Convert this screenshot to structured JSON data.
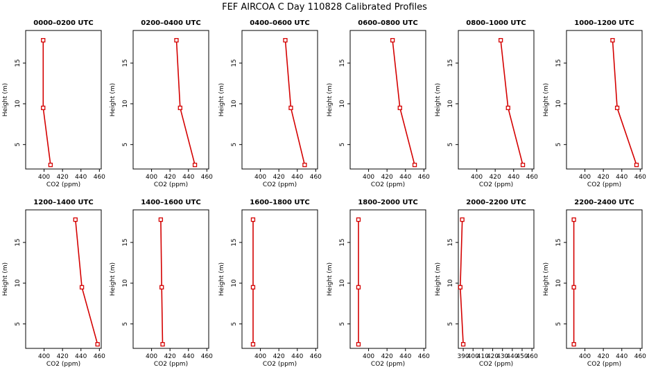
{
  "figure_title": "FEF AIRCOA C  Day 110828  Calibrated Profiles",
  "chart_data": [
    {
      "type": "line",
      "title": "0000–0200 UTC",
      "xlabel": "CO2 (ppm)",
      "ylabel": "Height (m)",
      "xlim": [
        380,
        462
      ],
      "ylim": [
        2,
        19
      ],
      "xticks": [
        400,
        420,
        440,
        460
      ],
      "yticks": [
        5,
        10,
        15
      ],
      "grid": false,
      "series": [
        {
          "x": [
            407,
            399,
            399
          ],
          "y": [
            2.5,
            9.5,
            17.8
          ]
        }
      ]
    },
    {
      "type": "line",
      "title": "0200–0400 UTC",
      "xlabel": "CO2 (ppm)",
      "ylabel": "Height (m)",
      "xlim": [
        380,
        462
      ],
      "ylim": [
        2,
        19
      ],
      "xticks": [
        400,
        420,
        440,
        460
      ],
      "yticks": [
        5,
        10,
        15
      ],
      "grid": false,
      "series": [
        {
          "x": [
            447,
            431,
            427
          ],
          "y": [
            2.5,
            9.5,
            17.8
          ]
        }
      ]
    },
    {
      "type": "line",
      "title": "0400–0600 UTC",
      "xlabel": "CO2 (ppm)",
      "ylabel": "Height (m)",
      "xlim": [
        380,
        462
      ],
      "ylim": [
        2,
        19
      ],
      "xticks": [
        400,
        420,
        440,
        460
      ],
      "yticks": [
        5,
        10,
        15
      ],
      "grid": false,
      "series": [
        {
          "x": [
            448,
            433,
            427
          ],
          "y": [
            2.5,
            9.5,
            17.8
          ]
        }
      ]
    },
    {
      "type": "line",
      "title": "0600–0800 UTC",
      "xlabel": "CO2 (ppm)",
      "ylabel": "Height (m)",
      "xlim": [
        380,
        462
      ],
      "ylim": [
        2,
        19
      ],
      "xticks": [
        400,
        420,
        440,
        460
      ],
      "yticks": [
        5,
        10,
        15
      ],
      "grid": false,
      "series": [
        {
          "x": [
            450,
            434,
            426
          ],
          "y": [
            2.5,
            9.5,
            17.8
          ]
        }
      ]
    },
    {
      "type": "line",
      "title": "0800–1000 UTC",
      "xlabel": "CO2 (ppm)",
      "ylabel": "Height (m)",
      "xlim": [
        380,
        462
      ],
      "ylim": [
        2,
        19
      ],
      "xticks": [
        400,
        420,
        440,
        460
      ],
      "yticks": [
        5,
        10,
        15
      ],
      "grid": false,
      "series": [
        {
          "x": [
            450,
            434,
            426
          ],
          "y": [
            2.5,
            9.5,
            17.8
          ]
        }
      ]
    },
    {
      "type": "line",
      "title": "1000–1200 UTC",
      "xlabel": "CO2 (ppm)",
      "ylabel": "Height (m)",
      "xlim": [
        380,
        462
      ],
      "ylim": [
        2,
        19
      ],
      "xticks": [
        400,
        420,
        440,
        460
      ],
      "yticks": [
        5,
        10,
        15
      ],
      "grid": false,
      "series": [
        {
          "x": [
            456,
            435,
            430
          ],
          "y": [
            2.5,
            9.5,
            17.8
          ]
        }
      ]
    },
    {
      "type": "line",
      "title": "1200–1400 UTC",
      "xlabel": "CO2 (ppm)",
      "ylabel": "Height (m)",
      "xlim": [
        380,
        462
      ],
      "ylim": [
        2,
        19
      ],
      "xticks": [
        400,
        420,
        440,
        460
      ],
      "yticks": [
        5,
        10,
        15
      ],
      "grid": false,
      "series": [
        {
          "x": [
            458,
            441,
            434
          ],
          "y": [
            2.5,
            9.5,
            17.8
          ]
        }
      ]
    },
    {
      "type": "line",
      "title": "1400–1600 UTC",
      "xlabel": "CO2 (ppm)",
      "ylabel": "Height (m)",
      "xlim": [
        380,
        462
      ],
      "ylim": [
        2,
        19
      ],
      "xticks": [
        400,
        420,
        440,
        460
      ],
      "yticks": [
        5,
        10,
        15
      ],
      "grid": false,
      "series": [
        {
          "x": [
            412,
            411,
            410
          ],
          "y": [
            2.5,
            9.5,
            17.8
          ]
        }
      ]
    },
    {
      "type": "line",
      "title": "1600–1800 UTC",
      "xlabel": "CO2 (ppm)",
      "ylabel": "Height (m)",
      "xlim": [
        380,
        462
      ],
      "ylim": [
        2,
        19
      ],
      "xticks": [
        400,
        420,
        440,
        460
      ],
      "yticks": [
        5,
        10,
        15
      ],
      "grid": false,
      "series": [
        {
          "x": [
            392,
            392,
            392
          ],
          "y": [
            2.5,
            9.5,
            17.8
          ]
        }
      ]
    },
    {
      "type": "line",
      "title": "1800–2000 UTC",
      "xlabel": "CO2 (ppm)",
      "ylabel": "Height (m)",
      "xlim": [
        380,
        462
      ],
      "ylim": [
        2,
        19
      ],
      "xticks": [
        400,
        420,
        440,
        460
      ],
      "yticks": [
        5,
        10,
        15
      ],
      "grid": false,
      "series": [
        {
          "x": [
            389,
            389,
            389
          ],
          "y": [
            2.5,
            9.5,
            17.8
          ]
        }
      ]
    },
    {
      "type": "line",
      "title": "2000–2200 UTC",
      "xlabel": "CO2 (ppm)",
      "ylabel": "Height (m)",
      "xlim": [
        385,
        462
      ],
      "ylim": [
        2,
        19
      ],
      "xticks": [
        390,
        400,
        410,
        420,
        430,
        440,
        450,
        460
      ],
      "yticks": [
        5,
        10,
        15
      ],
      "grid": false,
      "series": [
        {
          "x": [
            390,
            387,
            389
          ],
          "y": [
            2.5,
            9.5,
            17.8
          ]
        }
      ]
    },
    {
      "type": "line",
      "title": "2200–2400 UTC",
      "xlabel": "CO2 (ppm)",
      "ylabel": "Height (m)",
      "xlim": [
        380,
        462
      ],
      "ylim": [
        2,
        19
      ],
      "xticks": [
        400,
        420,
        440,
        460
      ],
      "yticks": [
        5,
        10,
        15
      ],
      "grid": false,
      "series": [
        {
          "x": [
            388,
            388,
            388
          ],
          "y": [
            2.5,
            9.5,
            17.8
          ]
        }
      ]
    }
  ],
  "colors": {
    "series": "#d40000",
    "axes": "#000000",
    "background": "#ffffff"
  }
}
